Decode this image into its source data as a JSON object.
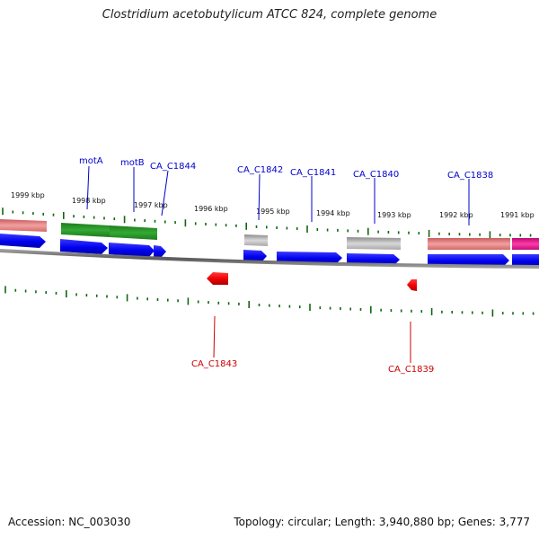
{
  "title": "Clostridium acetobutylicum ATCC 824, complete genome",
  "footer": {
    "accession": "Accession: NC_003030",
    "stats": "Topology: circular; Length: 3,940,880 bp; Genes: 3,777"
  },
  "kbp_labels": [
    "1999 kbp",
    "1998 kbp",
    "1997 kbp",
    "1996 kbp",
    "1995 kbp",
    "1994 kbp",
    "1993 kbp",
    "1992 kbp",
    "1991 kbp"
  ],
  "gene_labels_top": [
    "motA",
    "motB",
    "CA_C1844",
    "CA_C1842",
    "CA_C1841",
    "CA_C1840",
    "CA_C1838"
  ],
  "gene_labels_bottom": [
    "CA_C1843",
    "CA_C1839"
  ],
  "colors": {
    "forward_cds": "#0000ee",
    "reverse_cds": "#ee0000",
    "label_top": "#0000cc",
    "label_bottom": "#cc0000",
    "tick": "#116611",
    "backbone": "#777777",
    "mot_features": "#228822",
    "pink_feature": "#e07c7c",
    "magenta_feature": "#e0148c",
    "grey_feature": "#b8b8b8"
  }
}
